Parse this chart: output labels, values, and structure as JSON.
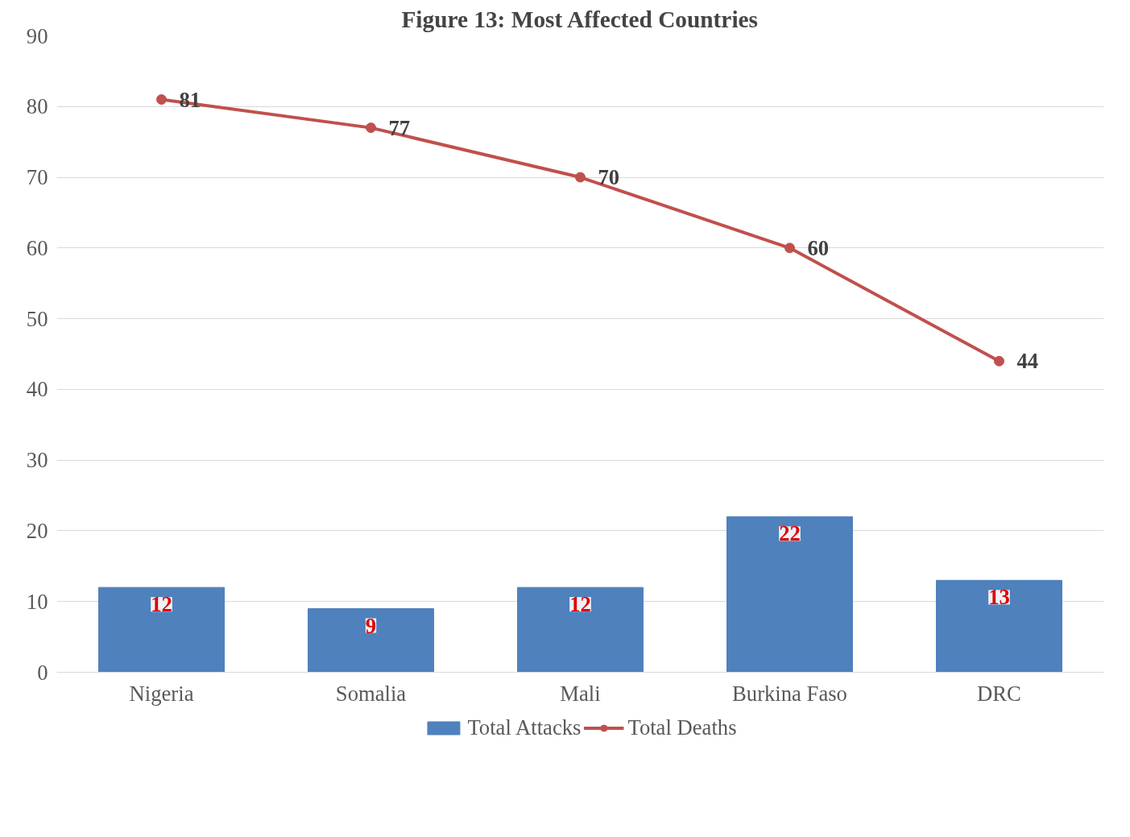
{
  "chart_data": {
    "type": "bar",
    "title": "Figure 13: Most Affected Countries",
    "categories": [
      "Nigeria",
      "Somalia",
      "Mali",
      "Burkina Faso",
      "DRC"
    ],
    "series": [
      {
        "name": "Total Attacks",
        "color": "#4f81bd",
        "values": [
          12,
          9,
          12,
          22,
          13
        ]
      },
      {
        "name": "Total Deaths",
        "type": "line",
        "color": "#c0504d",
        "values": [
          81,
          77,
          70,
          60,
          44
        ]
      }
    ],
    "ylim": [
      0,
      90
    ],
    "yticks": [
      0,
      10,
      20,
      30,
      40,
      50,
      60,
      70,
      80,
      90
    ],
    "grid": "y",
    "legend": "bottom",
    "marker": "circle",
    "line_style": "solid",
    "data_labels": true
  }
}
